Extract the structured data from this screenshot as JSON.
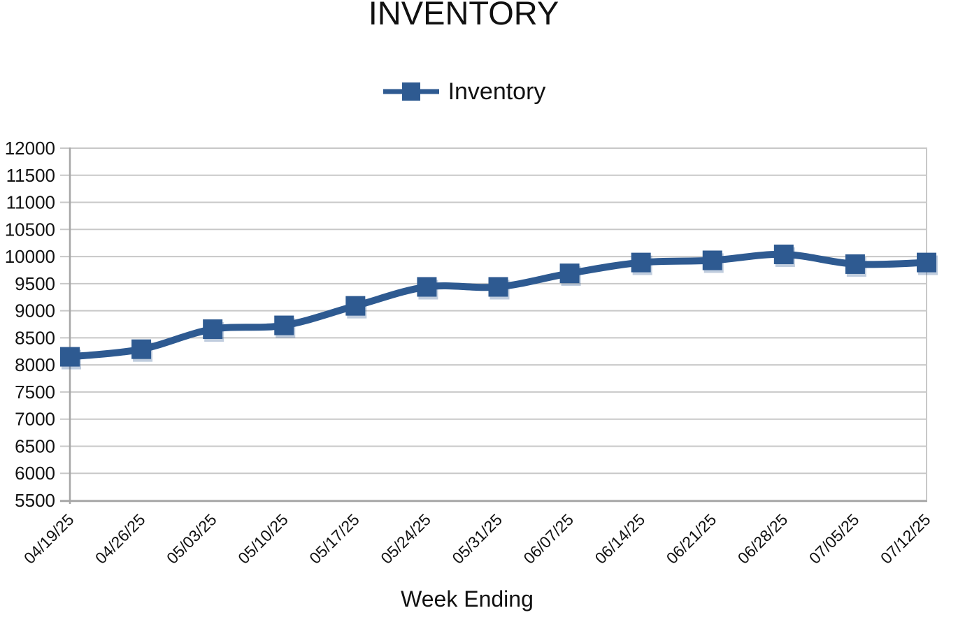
{
  "chart_data": {
    "type": "line",
    "title": "INVENTORY",
    "xlabel": "Week Ending",
    "ylabel": "",
    "grid": true,
    "legend_position": "top-center",
    "legend_entries": [
      "Inventory"
    ],
    "categories": [
      "04/19/25",
      "04/26/25",
      "05/03/25",
      "05/10/25",
      "05/17/25",
      "05/24/25",
      "05/31/25",
      "06/07/25",
      "06/14/25",
      "06/21/25",
      "06/28/25",
      "07/05/25",
      "07/12/25"
    ],
    "series": [
      {
        "name": "Inventory",
        "marker": "square",
        "color": "#2e5a91",
        "values": [
          8150,
          8290,
          8660,
          8730,
          9090,
          9440,
          9440,
          9690,
          9890,
          9930,
          10040,
          9860,
          9890
        ]
      }
    ],
    "ylim": [
      5500,
      12000
    ],
    "ytick_step": 500,
    "yticks": [
      12000,
      11500,
      11000,
      10500,
      10000,
      9500,
      9000,
      8500,
      8000,
      7500,
      7000,
      6500,
      6000,
      5500
    ],
    "colors": {
      "series": "#2e5a91",
      "gridline": "#c8c8c8",
      "axis": "#a6a6a6",
      "text": "#111111",
      "background": "#ffffff"
    }
  }
}
